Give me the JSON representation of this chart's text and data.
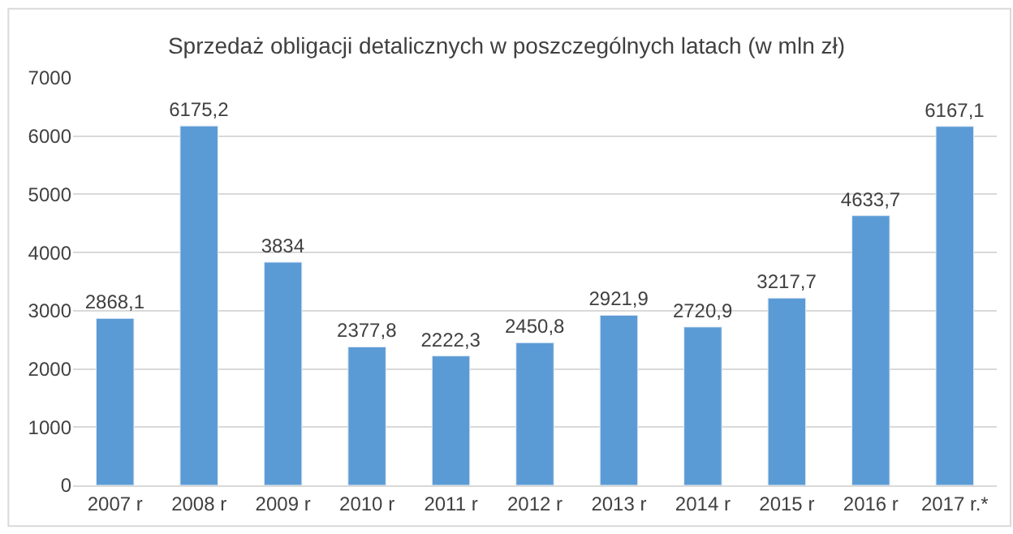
{
  "chart_data": {
    "type": "bar",
    "title": "Sprzedaż obligacji detalicznych w poszczególnych latach (w mln zł)",
    "categories": [
      "2007 r",
      "2008 r",
      "2009 r",
      "2010 r",
      "2011 r",
      "2012 r",
      "2013 r",
      "2014 r",
      "2015 r",
      "2016 r",
      "2017 r.*"
    ],
    "values": [
      2868.1,
      6175.2,
      3834,
      2377.8,
      2222.3,
      2450.8,
      2921.9,
      2720.9,
      3217.7,
      4633.7,
      6167.1
    ],
    "value_labels": [
      "2868,1",
      "6175,2",
      "3834",
      "2377,8",
      "2222,3",
      "2450,8",
      "2921,9",
      "2720,9",
      "3217,7",
      "4633,7",
      "6167,1"
    ],
    "color": "#5b9bd5",
    "ylim": [
      0,
      7000
    ],
    "yticks": [
      0,
      1000,
      2000,
      3000,
      4000,
      5000,
      6000,
      7000
    ],
    "grid": "y"
  }
}
